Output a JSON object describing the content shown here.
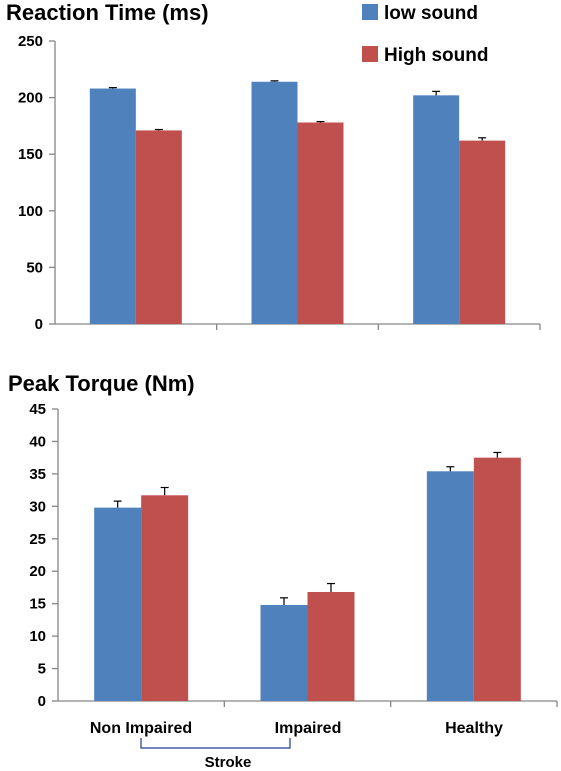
{
  "colors": {
    "low": "#4F81BD",
    "high": "#C0504D",
    "axis": "#868686",
    "text": "#000000"
  },
  "legend": {
    "items": [
      "low sound",
      "High sound"
    ],
    "placement": "top-right"
  },
  "categories": [
    "Non Impaired",
    "Impaired",
    "Healthy"
  ],
  "group_label": "Stroke",
  "chart_data": [
    {
      "type": "bar",
      "title": "Reaction Time (ms)",
      "categories": [
        "Non Impaired",
        "Impaired",
        "Healthy"
      ],
      "ylim": [
        0,
        250
      ],
      "yticks": [
        0,
        50,
        100,
        150,
        200,
        250
      ],
      "grid": false,
      "series": [
        {
          "name": "low sound",
          "values": [
            208,
            214,
            202
          ],
          "errors": [
            0.8,
            0.8,
            3.5
          ]
        },
        {
          "name": "High sound",
          "values": [
            171,
            178,
            162
          ],
          "errors": [
            0.8,
            0.8,
            2.5
          ]
        }
      ]
    },
    {
      "type": "bar",
      "title": "Peak Torque (Nm)",
      "categories": [
        "Non Impaired",
        "Impaired",
        "Healthy"
      ],
      "ylim": [
        0,
        45
      ],
      "yticks": [
        0,
        5,
        10,
        15,
        20,
        25,
        30,
        35,
        40,
        45
      ],
      "grid": false,
      "series": [
        {
          "name": "low sound",
          "values": [
            29.8,
            14.8,
            35.4
          ],
          "errors": [
            1.0,
            1.1,
            0.7
          ]
        },
        {
          "name": "High sound",
          "values": [
            31.7,
            16.8,
            37.5
          ],
          "errors": [
            1.2,
            1.3,
            0.8
          ]
        }
      ]
    }
  ]
}
